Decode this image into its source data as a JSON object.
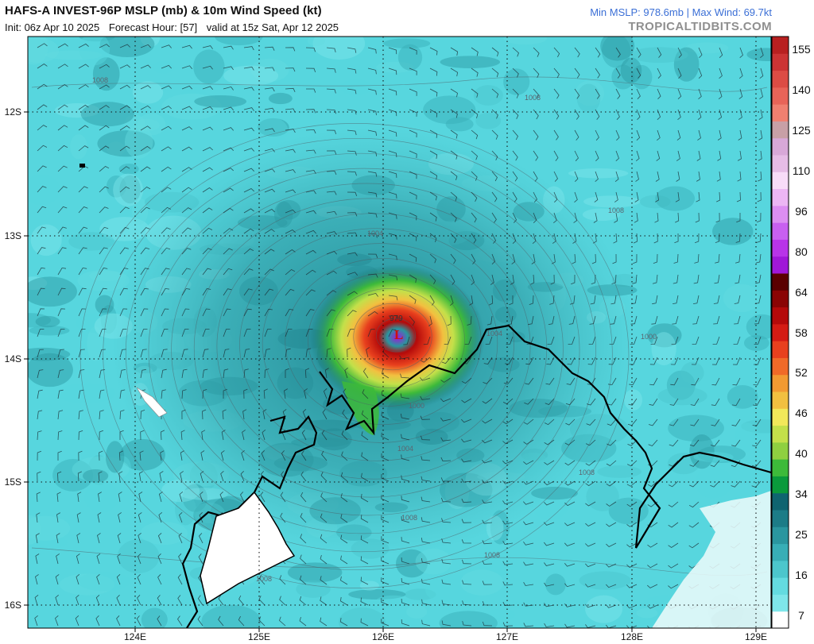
{
  "header": {
    "title": "HAFS-A INVEST-96P MSLP (mb) & 10m Wind Speed (kt)",
    "init": "Init: 06z Apr 10 2025",
    "forecast_hour": "Forecast Hour: [57]",
    "valid": "valid at 15z Sat, Apr 12 2025",
    "stats": "Min MSLP: 978.6mb | Max Wind: 69.7kt",
    "brand": "TROPICALTIDBITS.COM"
  },
  "axes": {
    "lat_labels": [
      "12S",
      "13S",
      "14S",
      "15S",
      "16S"
    ],
    "lon_labels": [
      "124E",
      "125E",
      "126E",
      "127E",
      "128E",
      "129E"
    ]
  },
  "colorbar": {
    "labels": [
      "155",
      "140",
      "125",
      "110",
      "96",
      "80",
      "64",
      "58",
      "52",
      "46",
      "40",
      "34",
      "25",
      "16",
      "7"
    ],
    "colors": [
      "#ffffff",
      "#7fe6ea",
      "#64dbe0",
      "#4cc6cc",
      "#38aeb6",
      "#2a969f",
      "#1c7c87",
      "#0f6470",
      "#0a9a3c",
      "#3dba3a",
      "#8fd040",
      "#c3e04a",
      "#f2e85a",
      "#f2c040",
      "#f29a32",
      "#f06a28",
      "#e8401e",
      "#d41c14",
      "#b40a0a",
      "#8a0404",
      "#5a0000",
      "#a018d8",
      "#b834e8",
      "#c860f0",
      "#dc8ef2",
      "#ecb6f4",
      "#f8dcf8",
      "#e6bce6",
      "#d8a8d8",
      "#c8a0a6",
      "#f08070",
      "#e86458",
      "#dc4c44",
      "#cc3434",
      "#b82020"
    ]
  },
  "map_labels": {
    "low_center": "L",
    "min_pressure": "979",
    "isobars": [
      "1008",
      "1008",
      "1008",
      "1004",
      "1004",
      "1000",
      "1000",
      "1004",
      "1008",
      "1008",
      "1008",
      "1008"
    ]
  },
  "colors": {
    "ocean_base": "#57d6de",
    "land": "#ffffff",
    "coastline": "#000000",
    "graticule": "#111111",
    "stats_blue": "#3b6fd6",
    "brand_gray": "#8f8f8f"
  }
}
